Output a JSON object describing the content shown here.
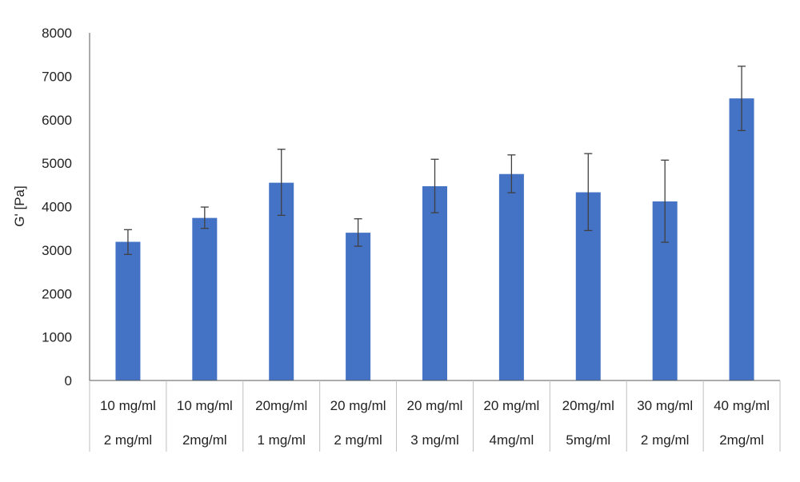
{
  "chart_data": {
    "type": "bar",
    "ylabel": "G' [Pa]",
    "xlabel": "",
    "title": "",
    "ylim": [
      0,
      8000
    ],
    "yticks": [
      0,
      1000,
      2000,
      3000,
      4000,
      5000,
      6000,
      7000,
      8000
    ],
    "grid": false,
    "legend": "none",
    "categories": [
      [
        "10 mg/ml",
        "2 mg/ml"
      ],
      [
        "10 mg/ml",
        "2mg/ml"
      ],
      [
        "20mg/ml",
        "1 mg/ml"
      ],
      [
        "20 mg/ml",
        "2 mg/ml"
      ],
      [
        "20 mg/ml",
        "3 mg/ml"
      ],
      [
        "20 mg/ml",
        "4mg/ml"
      ],
      [
        "20mg/ml",
        "5mg/ml"
      ],
      [
        "30 mg/ml",
        "2 mg/ml"
      ],
      [
        "40 mg/ml",
        "2mg/ml"
      ]
    ],
    "values": [
      3190,
      3740,
      4550,
      3400,
      4470,
      4750,
      4330,
      4120,
      6490
    ],
    "error_high": [
      3470,
      3990,
      5320,
      3720,
      5090,
      5190,
      5220,
      5070,
      7230
    ],
    "error_low": [
      2900,
      3500,
      3800,
      3090,
      3860,
      4320,
      3450,
      3180,
      5750
    ],
    "bar_color": "#4472C4",
    "error_color": "#404040",
    "axis_color": "#595959"
  }
}
